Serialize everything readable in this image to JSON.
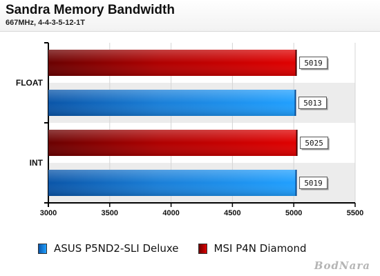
{
  "chart_data": {
    "type": "bar",
    "orientation": "horizontal",
    "title": "Sandra Memory Bandwidth",
    "subtitle": "667MHz, 4-4-3-5-12-1T",
    "categories": [
      "FLOAT",
      "INT"
    ],
    "series": [
      {
        "name": "MSI P4N Diamond",
        "values": [
          5019,
          5025
        ],
        "color": "#c00000"
      },
      {
        "name": "ASUS P5ND2-SLI Deluxe",
        "values": [
          5013,
          5019
        ],
        "color": "#1e8ae6"
      }
    ],
    "xlim": [
      3000,
      5500
    ],
    "xticks": [
      3000,
      3500,
      4000,
      4500,
      5000,
      5500
    ],
    "grid": true,
    "legend_position": "bottom",
    "legend_order": [
      "ASUS P5ND2-SLI Deluxe",
      "MSI P4N Diamond"
    ]
  },
  "watermark": "BodNara"
}
